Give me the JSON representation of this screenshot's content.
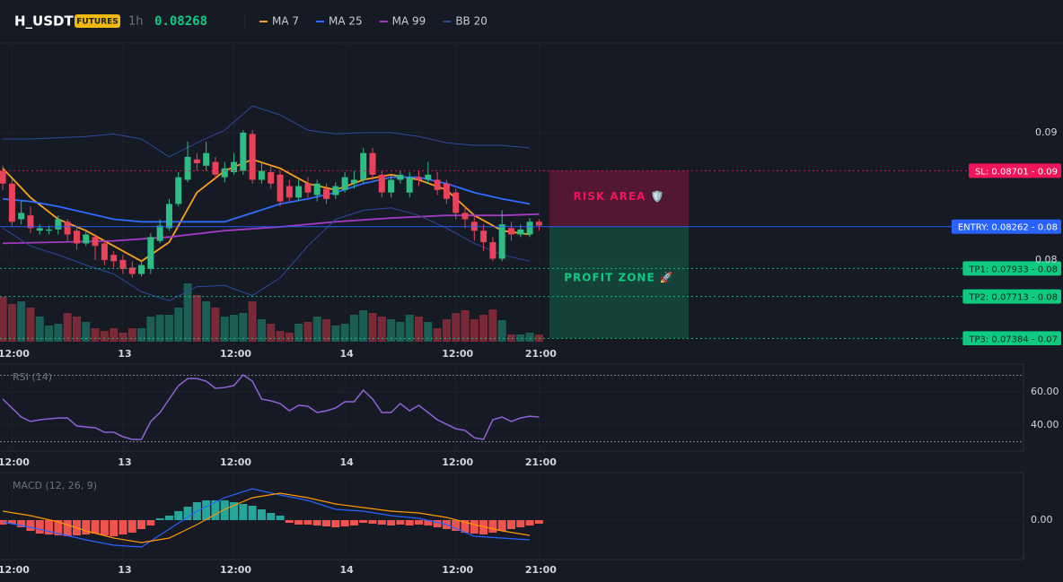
{
  "chart_data": [
    {
      "type": "candlestick",
      "title": "H_USDT",
      "badge": "FUTURES",
      "interval": "1h",
      "last_price": 0.08268,
      "xlim": [
        -0.3,
        110.4
      ],
      "xticks": [
        {
          "value": 1,
          "label": "12:00"
        },
        13,
        {
          "value": 25,
          "label": "12:00"
        },
        {
          "value": 37,
          "label": "14"
        },
        {
          "value": 49,
          "label": "12:00"
        },
        {
          "value": 58,
          "label": "21:00"
        }
      ],
      "ylim": [
        0.0733,
        0.0969
      ],
      "yticks": [
        0.08,
        0.09
      ],
      "grid": true,
      "colors": {
        "up": "#2ebd85",
        "down": "#e8435a"
      },
      "volume_colors": {
        "up": "#1b5e55",
        "down": "#7a2a36"
      },
      "volume_ylim": [
        0,
        70
      ],
      "open": [
        0.087,
        0.086,
        0.0832,
        0.0835,
        0.0823,
        0.0823,
        0.0824,
        0.083,
        0.0823,
        0.0813,
        0.0818,
        0.0813,
        0.0804,
        0.08,
        0.0794,
        0.0789,
        0.0793,
        0.0815,
        0.0825,
        0.0844,
        0.0863,
        0.0879,
        0.0874,
        0.0877,
        0.0865,
        0.0869,
        0.087,
        0.0899,
        0.0863,
        0.0869,
        0.0867,
        0.0858,
        0.0849,
        0.086,
        0.0851,
        0.0856,
        0.0851,
        0.0855,
        0.086,
        0.0863,
        0.0884,
        0.0867,
        0.0853,
        0.0863,
        0.0853,
        0.0865,
        0.0863,
        0.0863,
        0.086,
        0.0853,
        0.0837,
        0.083,
        0.0823,
        0.0814,
        0.0801,
        0.0825,
        0.082,
        0.082,
        0.083
      ],
      "high": [
        0.0874,
        0.0863,
        0.0846,
        0.0842,
        0.0828,
        0.0827,
        0.0835,
        0.0832,
        0.0825,
        0.0823,
        0.082,
        0.0815,
        0.0807,
        0.0804,
        0.0799,
        0.08,
        0.0821,
        0.0832,
        0.0848,
        0.0869,
        0.0893,
        0.0884,
        0.0893,
        0.0881,
        0.0877,
        0.0884,
        0.0902,
        0.0902,
        0.0877,
        0.0874,
        0.087,
        0.0863,
        0.0863,
        0.0865,
        0.0863,
        0.086,
        0.0861,
        0.0869,
        0.087,
        0.0888,
        0.0888,
        0.087,
        0.0867,
        0.087,
        0.0869,
        0.087,
        0.0877,
        0.0869,
        0.0863,
        0.0856,
        0.0842,
        0.0835,
        0.0828,
        0.0818,
        0.0839,
        0.083,
        0.0828,
        0.0833,
        0.0832
      ],
      "low": [
        0.0855,
        0.0827,
        0.0828,
        0.0821,
        0.082,
        0.082,
        0.082,
        0.0815,
        0.0808,
        0.0811,
        0.08,
        0.0796,
        0.0794,
        0.0789,
        0.0786,
        0.0787,
        0.0789,
        0.0813,
        0.0823,
        0.0842,
        0.0861,
        0.087,
        0.087,
        0.0863,
        0.0861,
        0.0867,
        0.0867,
        0.086,
        0.086,
        0.0856,
        0.0842,
        0.0846,
        0.0846,
        0.0849,
        0.0846,
        0.0844,
        0.0848,
        0.0853,
        0.0856,
        0.086,
        0.0863,
        0.0849,
        0.0849,
        0.086,
        0.0849,
        0.0858,
        0.086,
        0.0851,
        0.0844,
        0.0832,
        0.0825,
        0.0815,
        0.0807,
        0.0799,
        0.0799,
        0.0815,
        0.0818,
        0.0818,
        0.0823
      ],
      "close": [
        0.086,
        0.083,
        0.0837,
        0.0825,
        0.0825,
        0.0824,
        0.0832,
        0.082,
        0.0813,
        0.082,
        0.0811,
        0.08,
        0.0799,
        0.0793,
        0.0789,
        0.0796,
        0.0818,
        0.0827,
        0.0844,
        0.0865,
        0.0881,
        0.0876,
        0.0884,
        0.0867,
        0.0872,
        0.0877,
        0.09,
        0.0863,
        0.087,
        0.086,
        0.0846,
        0.0849,
        0.0858,
        0.0853,
        0.086,
        0.0848,
        0.0858,
        0.0865,
        0.0863,
        0.0884,
        0.0867,
        0.0853,
        0.0863,
        0.0867,
        0.0865,
        0.0863,
        0.0867,
        0.0855,
        0.0848,
        0.0837,
        0.0832,
        0.0823,
        0.0814,
        0.0801,
        0.0828,
        0.082,
        0.0824,
        0.083,
        0.0827
      ],
      "volume": [
        50,
        42,
        45,
        38,
        28,
        18,
        20,
        32,
        28,
        22,
        15,
        12,
        15,
        10,
        15,
        15,
        28,
        30,
        30,
        38,
        65,
        52,
        45,
        38,
        28,
        30,
        32,
        45,
        25,
        20,
        12,
        10,
        20,
        22,
        28,
        25,
        18,
        20,
        30,
        35,
        32,
        28,
        25,
        22,
        30,
        28,
        22,
        15,
        25,
        32,
        35,
        25,
        30,
        36,
        24,
        8,
        8,
        10,
        8
      ],
      "series": [
        {
          "name": "MA 7",
          "color": "#f7a21b",
          "x": [
            0,
            3,
            6,
            9,
            12,
            15,
            18,
            21,
            24,
            27,
            30,
            33,
            36,
            39,
            42,
            45,
            48,
            51,
            54,
            57
          ],
          "values": [
            0.0872,
            0.0849,
            0.0832,
            0.0823,
            0.0811,
            0.0799,
            0.0814,
            0.0853,
            0.087,
            0.0879,
            0.0872,
            0.086,
            0.0855,
            0.0863,
            0.0867,
            0.0863,
            0.0855,
            0.0835,
            0.0823,
            0.082
          ]
        },
        {
          "name": "MA 25",
          "color": "#2f6bff",
          "x": [
            0,
            3,
            6,
            9,
            12,
            15,
            18,
            21,
            24,
            27,
            30,
            33,
            36,
            39,
            42,
            45,
            48,
            51,
            54,
            57
          ],
          "values": [
            0.0848,
            0.0846,
            0.0842,
            0.0837,
            0.0832,
            0.083,
            0.083,
            0.083,
            0.083,
            0.0837,
            0.0844,
            0.0848,
            0.0853,
            0.086,
            0.0865,
            0.0865,
            0.086,
            0.0853,
            0.0848,
            0.0844
          ]
        },
        {
          "name": "MA 99",
          "color": "#a23bc4",
          "x": [
            0,
            6,
            12,
            18,
            24,
            30,
            36,
            42,
            48,
            54,
            58
          ],
          "values": [
            0.0813,
            0.0814,
            0.0815,
            0.0818,
            0.0823,
            0.0826,
            0.083,
            0.0833,
            0.0835,
            0.0835,
            0.0836
          ]
        },
        {
          "name": "BB 20",
          "color": "#2b4a9c",
          "x": [
            0,
            3,
            6,
            9,
            12,
            15,
            18,
            21,
            24,
            27,
            30,
            33,
            36,
            39,
            42,
            45,
            48,
            51,
            54,
            57
          ],
          "upper": [
            0.0895,
            0.0895,
            0.0896,
            0.0897,
            0.0899,
            0.0895,
            0.0881,
            0.0892,
            0.0902,
            0.0921,
            0.0914,
            0.0902,
            0.0899,
            0.09,
            0.09,
            0.0897,
            0.0892,
            0.089,
            0.089,
            0.0888
          ],
          "lower": [
            0.0825,
            0.0811,
            0.0804,
            0.0796,
            0.0789,
            0.0775,
            0.0768,
            0.0779,
            0.078,
            0.0772,
            0.0786,
            0.0811,
            0.0832,
            0.0839,
            0.0841,
            0.0835,
            0.0825,
            0.0813,
            0.0804,
            0.0799
          ]
        }
      ],
      "levels": [
        {
          "label": "SL: 0.08701 - 0.09",
          "value": 0.08701,
          "color": "#f0145a",
          "style": "dashed"
        },
        {
          "label": "ENTRY: 0.08262 - 0.08",
          "value": 0.08262,
          "color": "#2962ff",
          "style": "solid"
        },
        {
          "label": "TP1: 0.07933 - 0.08",
          "value": 0.07933,
          "color": "#0ecb81",
          "style": "dashed"
        },
        {
          "label": "TP2: 0.07713 - 0.08",
          "value": 0.07713,
          "color": "#0ecb81",
          "style": "dashed"
        },
        {
          "label": "TP3: 0.07384 - 0.07",
          "value": 0.07384,
          "color": "#0ecb81",
          "style": "dashed"
        }
      ],
      "zones": [
        {
          "text": "RISK AREA 🛡️",
          "color": "#f0145a"
        },
        {
          "text": "PROFIT ZONE 🚀",
          "color": "#0ecb81"
        }
      ]
    },
    {
      "type": "line",
      "title": "RSI (14)",
      "color": "#8f63d8",
      "xlim": [
        -0.3,
        110.4
      ],
      "xticks": [
        {
          "value": 1,
          "label": "12:00"
        },
        13,
        {
          "value": 25,
          "label": "12:00"
        },
        {
          "value": 37,
          "label": "14"
        },
        {
          "value": 49,
          "label": "12:00"
        },
        {
          "value": 58,
          "label": "21:00"
        }
      ],
      "ylim": [
        24.9,
        75.7
      ],
      "yticks": [
        {
          "value": 60,
          "label": "60.00"
        },
        {
          "value": 40,
          "label": "40.00"
        }
      ],
      "reference_lines": [
        70,
        30
      ],
      "values": [
        55.7,
        50.3,
        44.9,
        42.2,
        43.2,
        43.8,
        44.3,
        44.3,
        39.5,
        38.9,
        38.4,
        35.7,
        35.7,
        33,
        31.4,
        31.4,
        42.2,
        47.6,
        55.7,
        63.8,
        68.1,
        68.1,
        66.5,
        62.2,
        62.7,
        63.8,
        70.3,
        66.5,
        55.7,
        54.6,
        53,
        48.6,
        51.9,
        51.4,
        47.6,
        48.6,
        50.3,
        54.1,
        54.1,
        61.1,
        55.7,
        47.6,
        47.6,
        53,
        48.6,
        51.9,
        47.6,
        43.2,
        40.5,
        37.8,
        36.8,
        32.4,
        31.4,
        43.2,
        44.9,
        42.2,
        44.3,
        45.4,
        44.9
      ]
    },
    {
      "type": "macd",
      "title": "MACD (12, 26, 9)",
      "xlim": [
        -0.3,
        110.4
      ],
      "xticks": [
        {
          "value": 1,
          "label": "12:00"
        },
        13,
        {
          "value": 25,
          "label": "12:00"
        },
        {
          "value": 37,
          "label": "14"
        },
        {
          "value": 49,
          "label": "12:00"
        },
        {
          "value": 58,
          "label": "21:00"
        }
      ],
      "ylim": [
        -0.00126,
        0.0015
      ],
      "yticks": [
        {
          "value": 0,
          "label": "0.00"
        }
      ],
      "colors": {
        "up": "#26a69a",
        "down": "#ef5350"
      },
      "histogram": [
        -0.00015,
        -0.00012,
        -0.00024,
        -0.00036,
        -0.00045,
        -0.00048,
        -0.00051,
        -0.00054,
        -0.00051,
        -0.00048,
        -0.00045,
        -0.00051,
        -0.00054,
        -0.00048,
        -0.00042,
        -0.0003,
        -0.00018,
        6e-05,
        0.00015,
        0.0003,
        0.00045,
        0.0006,
        0.00066,
        0.00066,
        0.00066,
        0.0006,
        0.00054,
        0.00048,
        0.00036,
        0.00024,
        0.00015,
        -9e-05,
        -0.00015,
        -0.00015,
        -0.00018,
        -0.00021,
        -0.00024,
        -0.00021,
        -0.00018,
        -9e-05,
        -0.00012,
        -0.00015,
        -0.00018,
        -0.00015,
        -0.00018,
        -0.00015,
        -0.00018,
        -0.00024,
        -0.0003,
        -0.00036,
        -0.00042,
        -0.00045,
        -0.00048,
        -0.00042,
        -0.00036,
        -0.0003,
        -0.00024,
        -0.00018,
        -0.00012
      ],
      "macd_line": {
        "color": "#2962ff",
        "x": [
          0,
          3,
          6,
          9,
          12,
          15,
          18,
          21,
          24,
          27,
          30,
          33,
          36,
          39,
          42,
          45,
          48,
          51,
          54,
          57
        ],
        "values": [
          -6e-05,
          -0.00024,
          -0.00045,
          -0.00066,
          -0.00084,
          -0.0009,
          -0.0003,
          0.0003,
          0.00075,
          0.00105,
          0.00084,
          0.00066,
          0.00036,
          0.0003,
          0.00015,
          6e-05,
          -0.00015,
          -0.00054,
          -0.0006,
          -0.00066
        ]
      },
      "signal_line": {
        "color": "#ff9800",
        "x": [
          0,
          3,
          6,
          9,
          12,
          15,
          18,
          21,
          24,
          27,
          30,
          33,
          36,
          39,
          42,
          45,
          48,
          51,
          54,
          57
        ],
        "values": [
          0.0003,
          0.00015,
          -6e-05,
          -0.00036,
          -0.0006,
          -0.00075,
          -0.0006,
          -0.00015,
          0.00036,
          0.00075,
          0.0009,
          0.00075,
          0.00054,
          0.00042,
          0.0003,
          0.00024,
          9e-05,
          -0.00015,
          -0.00036,
          -0.00051
        ]
      }
    }
  ]
}
